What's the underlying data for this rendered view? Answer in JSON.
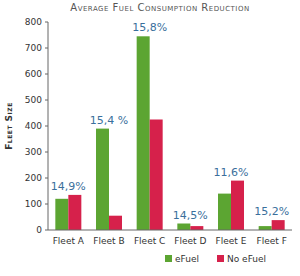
{
  "chart_data": {
    "type": "bar",
    "title": "Average Fuel Consumption Reduction",
    "y_label": "Fleet Size",
    "categories": [
      "Fleet A",
      "Fleet B",
      "Fleet C",
      "Fleet D",
      "Fleet E",
      "Fleet F"
    ],
    "series": [
      {
        "name": "eFuel",
        "color": "#5ca532",
        "values": [
          120,
          390,
          745,
          25,
          140,
          15
        ]
      },
      {
        "name": "No eFuel",
        "color": "#d6214b",
        "values": [
          135,
          55,
          425,
          15,
          190,
          38
        ]
      }
    ],
    "annotations": [
      "14,9%",
      "15,4 %",
      "15,8%",
      "14,5%",
      "11,6%",
      "15,2%"
    ],
    "ylim": [
      0,
      800
    ],
    "yticks": [
      0,
      100,
      200,
      300,
      400,
      500,
      600,
      700,
      800
    ],
    "grid": false,
    "legend": "bottom"
  }
}
